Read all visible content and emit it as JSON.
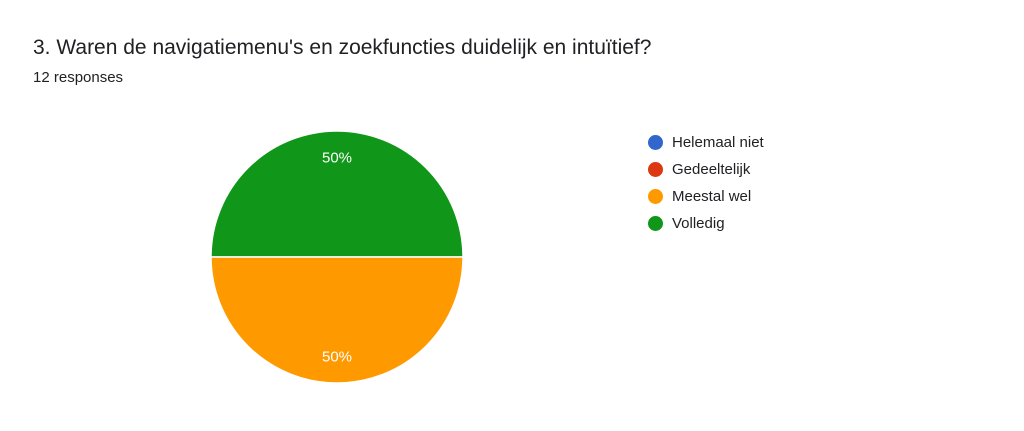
{
  "question": {
    "title": "3. Waren de navigatiemenu's en zoekfuncties duidelijk en intuïtief?",
    "response_count": "12 responses"
  },
  "chart_data": {
    "type": "pie",
    "categories": [
      "Helemaal niet",
      "Gedeeltelijk",
      "Meestal wel",
      "Volledig"
    ],
    "values": [
      0,
      0,
      6,
      6
    ],
    "percent_labels": [
      "0%",
      "0%",
      "50%",
      "50%"
    ],
    "colors": [
      "#3366cc",
      "#dc3912",
      "#ff9900",
      "#109618"
    ],
    "legend_position": "right",
    "title": "",
    "xlabel": "",
    "ylabel": ""
  }
}
